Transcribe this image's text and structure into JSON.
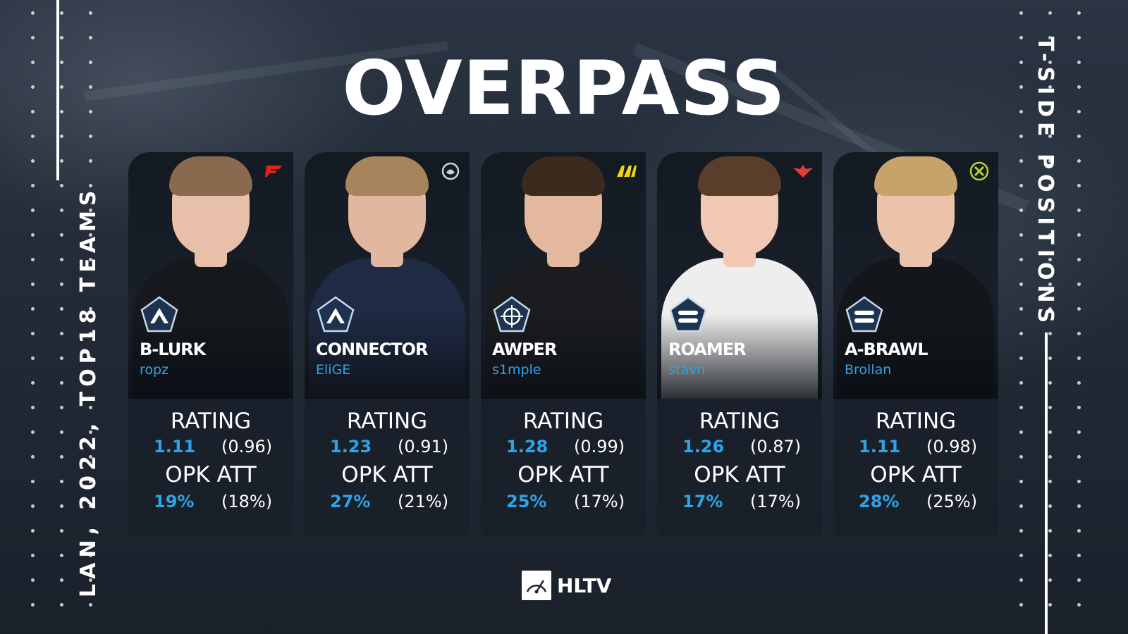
{
  "title": "OVERPASS",
  "side_left_text": "LAN, 2022, TOP18 TEAMS",
  "side_right_text": "T-SIDE POSITIONS",
  "stat_labels": {
    "rating": "RATING",
    "opk": "OPK ATT"
  },
  "footer": {
    "brand": "HLTV"
  },
  "colors": {
    "accent": "#2fa3e6",
    "background": "#1c2430",
    "text": "#ffffff"
  },
  "cards": [
    {
      "role": "B-LURK",
      "player": "ropz",
      "team_logo": "faze-logo",
      "role_icon": "lurk-chevron-icon",
      "rating": "1.11",
      "rating_avg": "(0.96)",
      "opk": "19%",
      "opk_avg": "(18%)",
      "jersey_color": "#15181d",
      "skin_color": "#e8bfa8",
      "hair_color": "#8a6a4e",
      "logo_color": "#e2231a"
    },
    {
      "role": "CONNECTOR",
      "player": "EliGE",
      "team_logo": "liquid-logo",
      "role_icon": "connector-chevron-icon",
      "rating": "1.23",
      "rating_avg": "(0.91)",
      "opk": "27%",
      "opk_avg": "(21%)",
      "jersey_color": "#1f2a44",
      "skin_color": "#e2b7a0",
      "hair_color": "#a7855c",
      "logo_color": "#c8d2e0"
    },
    {
      "role": "AWPER",
      "player": "s1mple",
      "team_logo": "navi-logo",
      "role_icon": "crosshair-icon",
      "rating": "1.28",
      "rating_avg": "(0.99)",
      "opk": "25%",
      "opk_avg": "(17%)",
      "jersey_color": "#1a1c1f",
      "skin_color": "#e4b89f",
      "hair_color": "#3b2a1e",
      "logo_color": "#f2d60c"
    },
    {
      "role": "ROAMER",
      "player": "stavn",
      "team_logo": "heroic-logo",
      "role_icon": "roamer-bars-icon",
      "rating": "1.26",
      "rating_avg": "(0.87)",
      "opk": "17%",
      "opk_avg": "(17%)",
      "jersey_color": "#eeeeee",
      "skin_color": "#f0c8b4",
      "hair_color": "#5a3d2a",
      "logo_color": "#e23b3b"
    },
    {
      "role": "A-BRAWL",
      "player": "Brollan",
      "team_logo": "nip-logo",
      "role_icon": "brawl-bars-icon",
      "rating": "1.11",
      "rating_avg": "(0.98)",
      "opk": "28%",
      "opk_avg": "(25%)",
      "jersey_color": "#13161a",
      "skin_color": "#eac3aa",
      "hair_color": "#c7a26a",
      "logo_color": "#b5d334"
    }
  ]
}
